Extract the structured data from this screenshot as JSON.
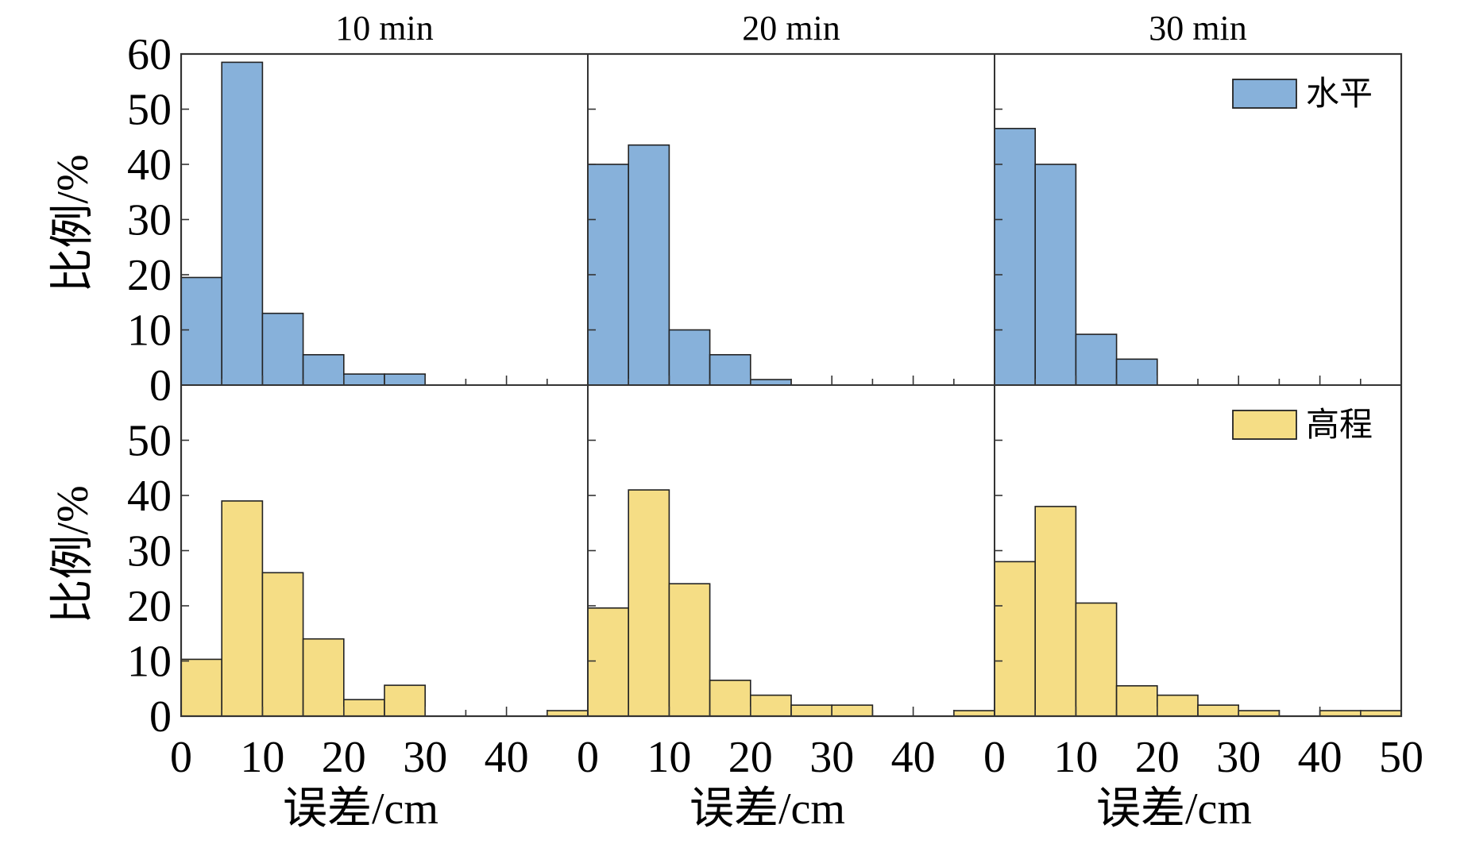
{
  "chart_data": {
    "type": "bar",
    "layout": "2x3 histogram grid",
    "bin_width": 5,
    "xlim": [
      0,
      50
    ],
    "ylim": [
      0,
      60
    ],
    "x_ticks": [
      0,
      10,
      20,
      30,
      40,
      50
    ],
    "y_ticks_top": [
      0,
      10,
      20,
      30,
      40,
      50,
      60
    ],
    "y_ticks_bottom": [
      0,
      10,
      20,
      30,
      40,
      50
    ],
    "column_titles": [
      "10 min",
      "20 min",
      "30 min"
    ],
    "ylabel": "比例/%",
    "xlabel": "误差/cm",
    "colors": {
      "horizontal": "#87b1da",
      "vertical": "#f5dd85",
      "edge": "#222222",
      "frame": "#333333"
    },
    "series": [
      {
        "name": "水平",
        "row": "top",
        "panels": [
          {
            "title": "10 min",
            "values": [
              19.5,
              58.5,
              13,
              5.5,
              2,
              2,
              0,
              0,
              0,
              0
            ]
          },
          {
            "title": "20 min",
            "values": [
              40,
              43.5,
              10,
              5.5,
              1,
              0,
              0,
              0,
              0,
              0
            ]
          },
          {
            "title": "30 min",
            "values": [
              46.5,
              40,
              9.2,
              4.7,
              0,
              0,
              0,
              0,
              0,
              0
            ]
          }
        ]
      },
      {
        "name": "高程",
        "row": "bottom",
        "panels": [
          {
            "title": "10 min",
            "values": [
              10.3,
              39,
              26,
              14,
              3,
              5.6,
              0,
              0,
              0,
              1
            ]
          },
          {
            "title": "20 min",
            "values": [
              19.6,
              41,
              24,
              6.5,
              3.8,
              2,
              2,
              0,
              0,
              1
            ]
          },
          {
            "title": "30 min",
            "values": [
              28,
              38,
              20.5,
              5.5,
              3.8,
              2,
              1,
              0,
              1,
              1
            ]
          }
        ]
      }
    ]
  }
}
